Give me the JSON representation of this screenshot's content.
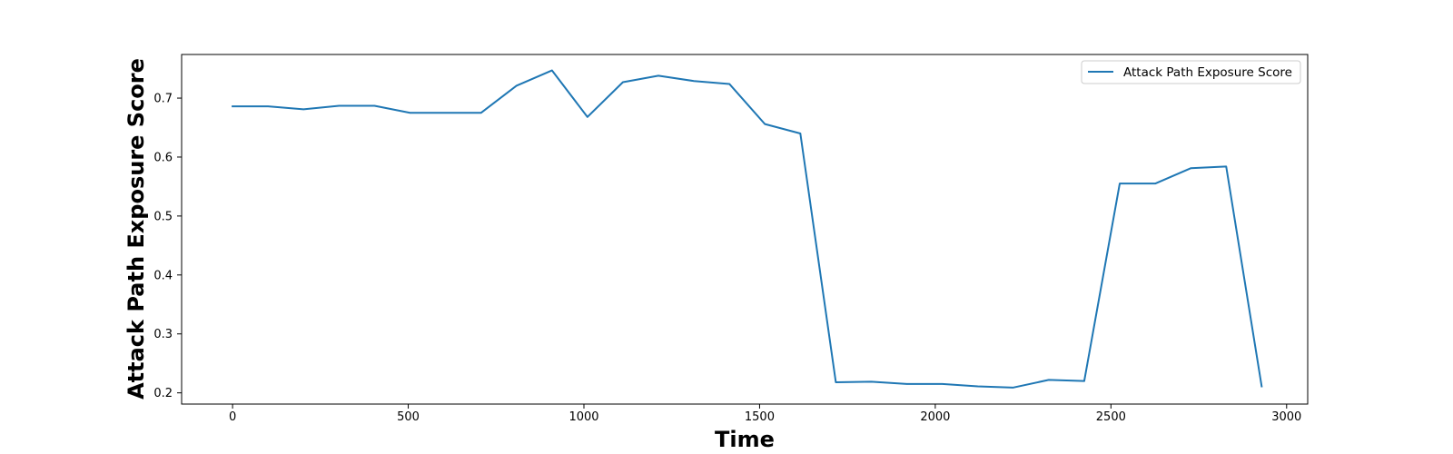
{
  "chart_data": {
    "type": "line",
    "title": "",
    "xlabel": "Time",
    "ylabel": "Attack Path Exposure Score",
    "xlim": [
      -145,
      3060
    ],
    "ylim": [
      0.181,
      0.774
    ],
    "xticks": [
      0,
      500,
      1000,
      1500,
      2000,
      2500,
      3000
    ],
    "yticks": [
      0.2,
      0.3,
      0.4,
      0.5,
      0.6,
      0.7
    ],
    "xtick_labels": [
      "0",
      "500",
      "1000",
      "1500",
      "2000",
      "2500",
      "3000"
    ],
    "ytick_labels": [
      "0.2",
      "0.3",
      "0.4",
      "0.5",
      "0.6",
      "0.7"
    ],
    "grid": false,
    "legend": {
      "position": "upper right"
    },
    "series": [
      {
        "name": "Attack Path Exposure Score",
        "color": "#1f77b4",
        "x": [
          0,
          101,
          202,
          303,
          404,
          505,
          606,
          707,
          808,
          909,
          1010,
          1111,
          1212,
          1313,
          1414,
          1515,
          1616,
          1717,
          1818,
          1919,
          2020,
          2121,
          2222,
          2323,
          2424,
          2525,
          2626,
          2727,
          2828,
          2929
        ],
        "y": [
          0.686,
          0.686,
          0.681,
          0.687,
          0.687,
          0.675,
          0.675,
          0.675,
          0.721,
          0.747,
          0.668,
          0.727,
          0.738,
          0.729,
          0.724,
          0.656,
          0.64,
          0.218,
          0.219,
          0.215,
          0.215,
          0.211,
          0.209,
          0.222,
          0.22,
          0.555,
          0.555,
          0.581,
          0.584,
          0.211
        ]
      }
    ]
  }
}
